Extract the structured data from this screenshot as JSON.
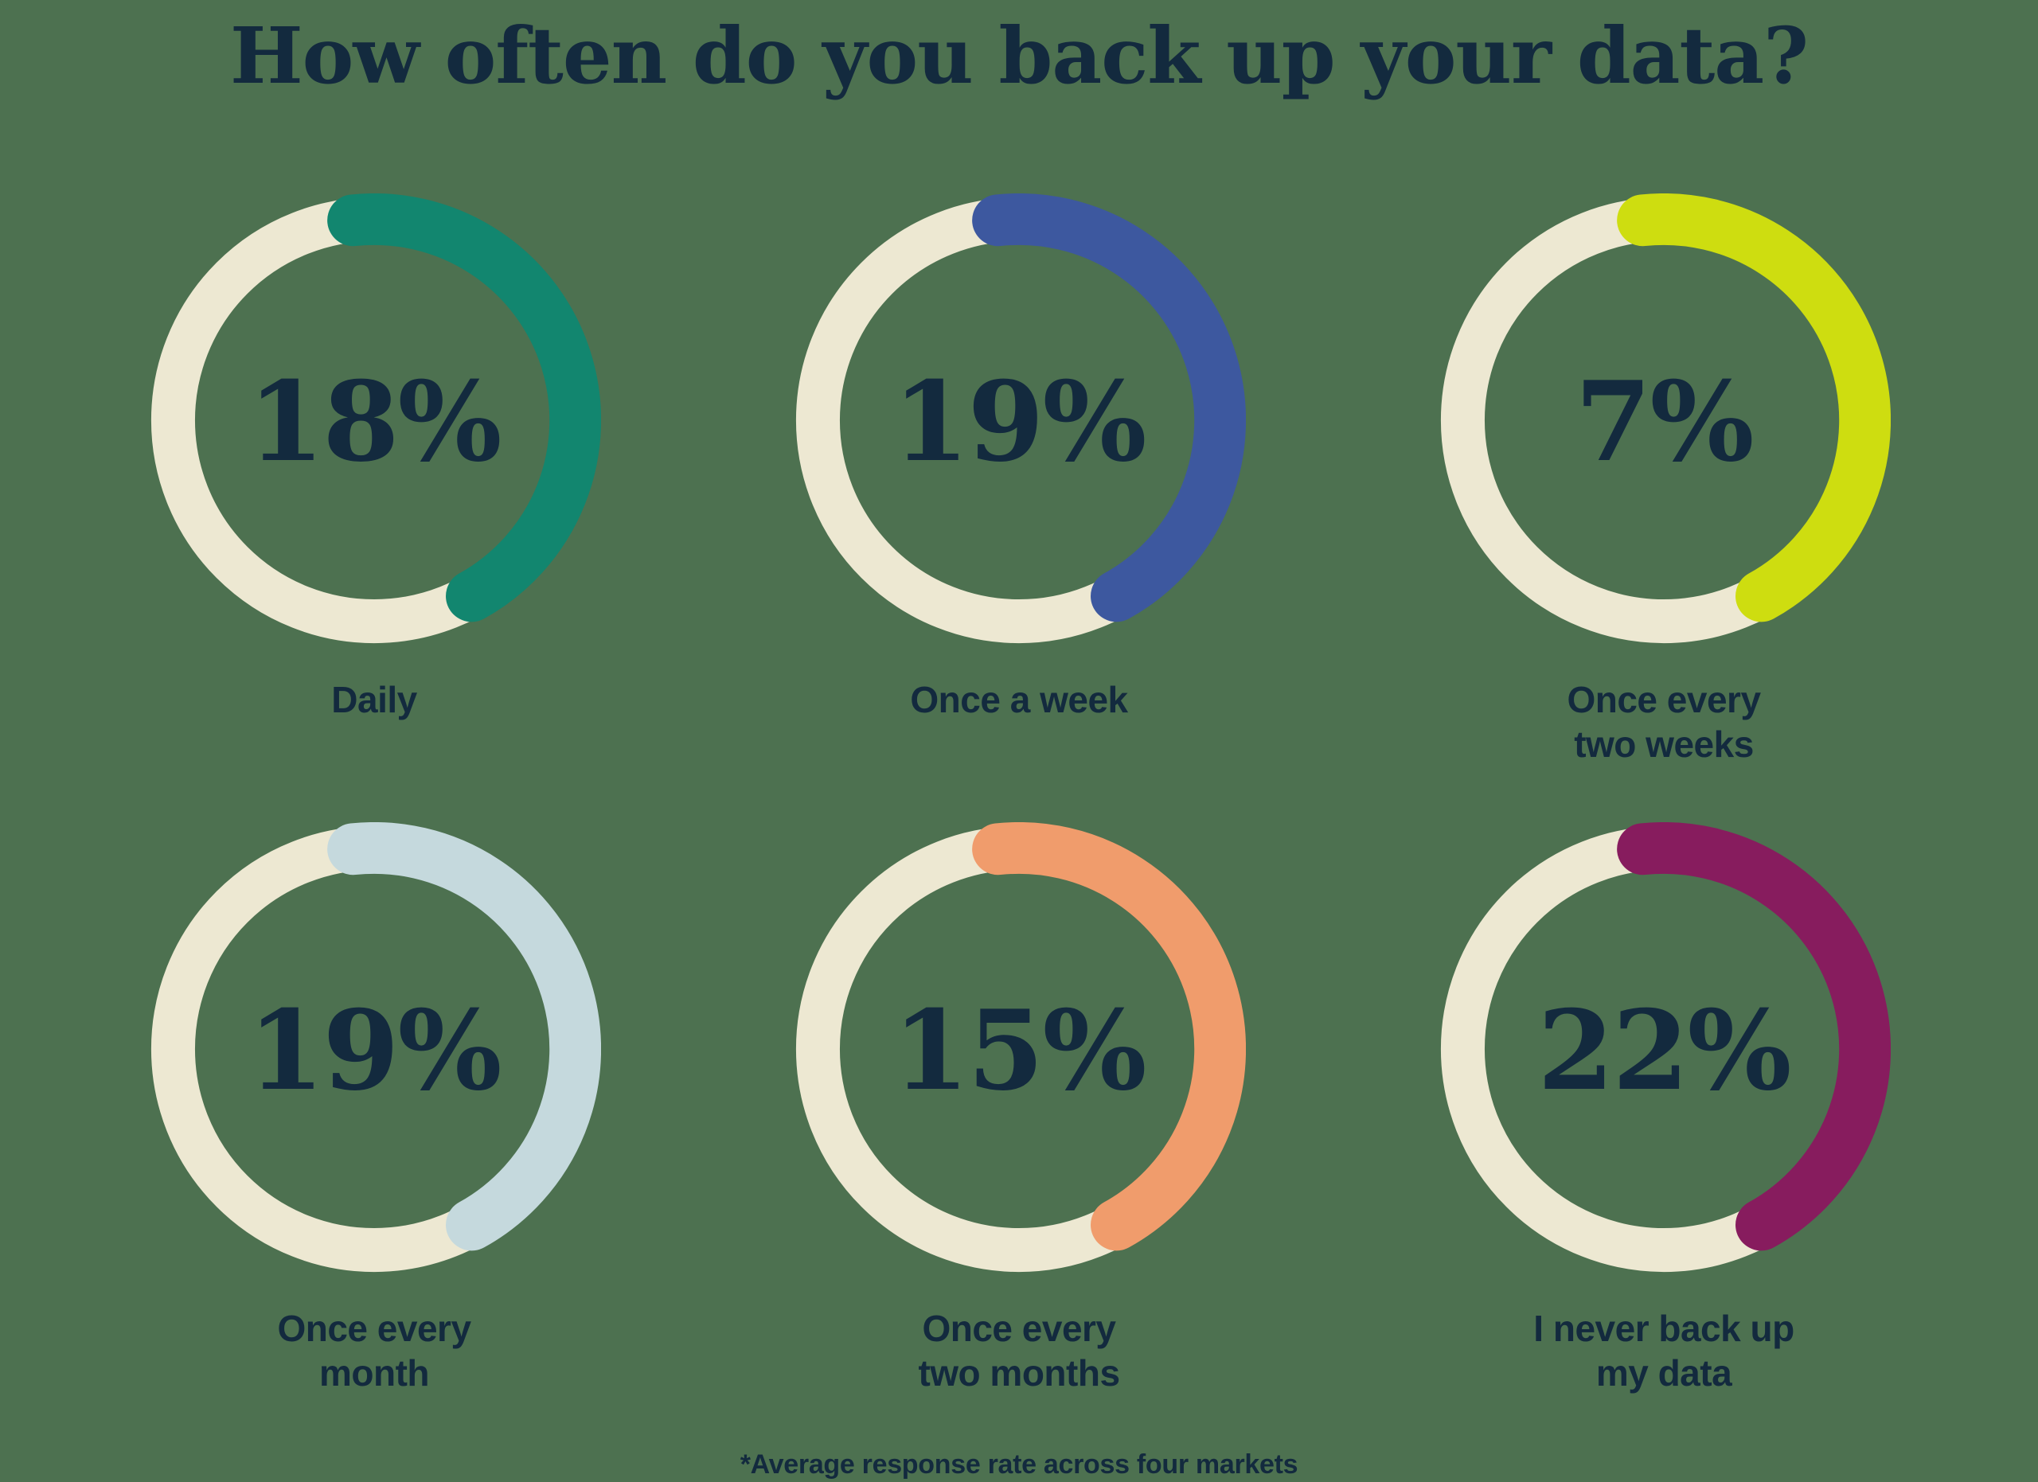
{
  "page": {
    "background_color": "#4D7150",
    "text_color": "#132A3E"
  },
  "title": "How often do you back up your data?",
  "footnote": "*Average response rate across four markets",
  "chart_data": {
    "type": "pie",
    "subtype": "donut-grid",
    "unit": "percent",
    "ring_track_color": "#EDE8D2",
    "items": [
      {
        "label": "Daily",
        "label_lines": [
          "Daily"
        ],
        "value": 18,
        "arc_color": "#12866F"
      },
      {
        "label": "Once a week",
        "label_lines": [
          "Once a week"
        ],
        "value": 19,
        "arc_color": "#3D589F"
      },
      {
        "label": "Once every two weeks",
        "label_lines": [
          "Once every",
          "two weeks"
        ],
        "value": 7,
        "arc_color": "#CEDD10"
      },
      {
        "label": "Once every month",
        "label_lines": [
          "Once every",
          "month"
        ],
        "value": 19,
        "arc_color": "#C5D9DD"
      },
      {
        "label": "Once every two months",
        "label_lines": [
          "Once every",
          "two months"
        ],
        "value": 15,
        "arc_color": "#F09C6C"
      },
      {
        "label": "I never back up my data",
        "label_lines": [
          "I never back up",
          "my data"
        ],
        "value": 22,
        "arc_color": "#871C5E"
      }
    ]
  }
}
